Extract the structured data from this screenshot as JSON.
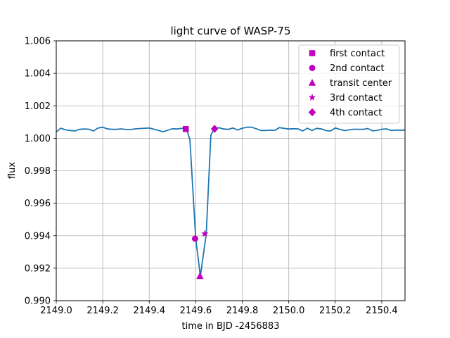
{
  "chart_data": {
    "type": "line",
    "title": "light curve of WASP-75",
    "xlabel": "time in BJD -2456883",
    "ylabel": "flux",
    "xlim": [
      2149.0,
      2150.5
    ],
    "ylim": [
      0.99,
      1.006
    ],
    "xticks": [
      2149.0,
      2149.2,
      2149.4,
      2149.6,
      2149.8,
      2150.0,
      2150.2,
      2150.4
    ],
    "xtick_labels": [
      "2149.0",
      "2149.2",
      "2149.4",
      "2149.6",
      "2149.8",
      "2150.0",
      "2150.2",
      "2150.4"
    ],
    "yticks": [
      0.99,
      0.992,
      0.994,
      0.996,
      0.998,
      1.0,
      1.002,
      1.004,
      1.006
    ],
    "ytick_labels": [
      "0.990",
      "0.992",
      "0.994",
      "0.996",
      "0.998",
      "1.000",
      "1.002",
      "1.004",
      "1.006"
    ],
    "grid": true,
    "legend_position": "top-right",
    "line_color": "#1f77b4",
    "marker_color": "#bf00bf",
    "series": [
      {
        "x": [
          2149.0,
          2149.02,
          2149.04,
          2149.06,
          2149.08,
          2149.1,
          2149.12,
          2149.14,
          2149.16,
          2149.18,
          2149.2,
          2149.22,
          2149.24,
          2149.26,
          2149.28,
          2149.3,
          2149.32,
          2149.34,
          2149.36,
          2149.38,
          2149.4,
          2149.42,
          2149.44,
          2149.46,
          2149.48,
          2149.5,
          2149.52,
          2149.54,
          2149.56,
          2149.575,
          2149.6,
          2149.62,
          2149.645,
          2149.665,
          2149.68,
          2149.7,
          2149.72,
          2149.74,
          2149.76,
          2149.78,
          2149.8,
          2149.82,
          2149.84,
          2149.86,
          2149.88,
          2149.9,
          2149.92,
          2149.94,
          2149.96,
          2149.98,
          2150.0,
          2150.02,
          2150.04,
          2150.06,
          2150.08,
          2150.1,
          2150.12,
          2150.14,
          2150.16,
          2150.18,
          2150.2,
          2150.22,
          2150.24,
          2150.26,
          2150.28,
          2150.3,
          2150.32,
          2150.34,
          2150.36,
          2150.38,
          2150.4,
          2150.42,
          2150.44,
          2150.46,
          2150.48,
          2150.5
        ],
        "y": [
          1.0004,
          1.00062,
          1.00052,
          1.00048,
          1.00045,
          1.00055,
          1.00057,
          1.00056,
          1.00045,
          1.00063,
          1.00068,
          1.00058,
          1.00055,
          1.00055,
          1.00058,
          1.00054,
          1.00054,
          1.00058,
          1.0006,
          1.00062,
          1.00063,
          1.00056,
          1.00048,
          1.0004,
          1.0005,
          1.00059,
          1.00057,
          1.00062,
          1.00059,
          0.9999,
          0.9938,
          0.9915,
          0.9941,
          1.0002,
          1.0006,
          1.00065,
          1.00057,
          1.00055,
          1.00063,
          1.00051,
          1.00062,
          1.00068,
          1.00068,
          1.00059,
          1.00048,
          1.00048,
          1.0005,
          1.00049,
          1.00066,
          1.00061,
          1.00057,
          1.00059,
          1.00058,
          1.00045,
          1.00062,
          1.00048,
          1.00061,
          1.00058,
          1.00047,
          1.00045,
          1.00063,
          1.00055,
          1.00047,
          1.00052,
          1.00056,
          1.00055,
          1.00055,
          1.0006,
          1.00046,
          1.00049,
          1.00056,
          1.00058,
          1.00048,
          1.0005,
          1.0005,
          1.0005
        ]
      }
    ],
    "markers": [
      {
        "name": "first contact",
        "symbol": "square",
        "x": 2149.557,
        "y": 1.00057
      },
      {
        "name": "2nd contact",
        "symbol": "circle",
        "x": 2149.597,
        "y": 0.99382
      },
      {
        "name": "transit center",
        "symbol": "triangle",
        "x": 2149.618,
        "y": 0.99152
      },
      {
        "name": "3rd contact",
        "symbol": "star",
        "x": 2149.639,
        "y": 0.99412
      },
      {
        "name": "4th contact",
        "symbol": "diamond",
        "x": 2149.681,
        "y": 1.00058
      }
    ]
  }
}
